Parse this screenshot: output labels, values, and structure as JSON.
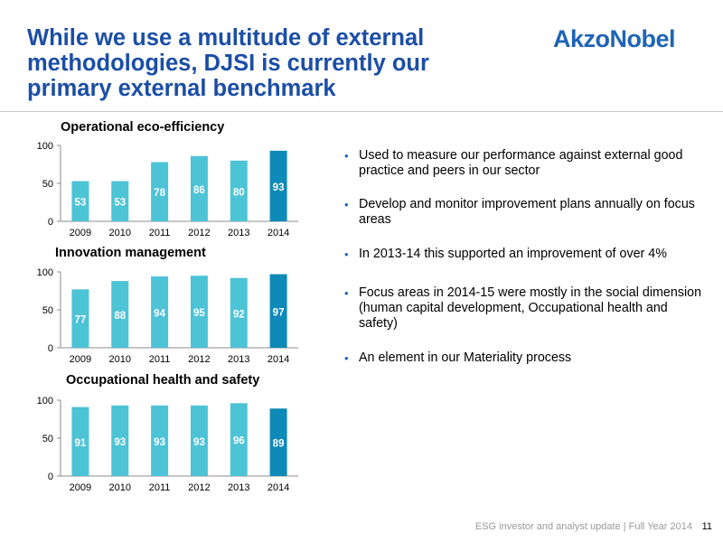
{
  "slide": {
    "title": "While we use a multitude of external methodologies, DJSI is currently our primary external benchmark",
    "logo_text": "AkzoNobel",
    "footer": "ESG investor and analyst update | Full Year 2014",
    "page_number": "11"
  },
  "bullets": [
    "Used to measure our performance against external good practice and peers in our sector",
    "Develop and monitor improvement plans annually on focus areas",
    "In 2013-14 this supported an improvement of over 4%",
    "Focus areas in 2014-15 were mostly in the social dimension (human capital development, Occupational health and safety)",
    "An element in our Materiality process"
  ],
  "colors": {
    "title": "#1b4ea6",
    "logo": "#1f64b6",
    "bar_light": "#4dc3d6",
    "bar_highlight": "#0e8ab8",
    "bullet": "#1f64b6"
  },
  "chart_data": [
    {
      "type": "bar",
      "title": "Operational eco-efficiency",
      "categories": [
        "2009",
        "2010",
        "2011",
        "2012",
        "2013",
        "2014"
      ],
      "values": [
        53,
        53,
        78,
        86,
        80,
        93
      ],
      "yticks": [
        "0",
        "50",
        "100"
      ],
      "ylim": [
        0,
        100
      ],
      "highlight_category": "2014",
      "grid": false
    },
    {
      "type": "bar",
      "title": "Innovation management",
      "categories": [
        "2009",
        "2010",
        "2011",
        "2012",
        "2013",
        "2014"
      ],
      "values": [
        77,
        88,
        94,
        95,
        92,
        97
      ],
      "yticks": [
        "0",
        "50",
        "100"
      ],
      "ylim": [
        0,
        100
      ],
      "highlight_category": "2014",
      "grid": false
    },
    {
      "type": "bar",
      "title": "Occupational health and safety",
      "categories": [
        "2009",
        "2010",
        "2011",
        "2012",
        "2013",
        "2014"
      ],
      "values": [
        91,
        93,
        93,
        93,
        96,
        89
      ],
      "yticks": [
        "0",
        "50",
        "100"
      ],
      "ylim": [
        0,
        100
      ],
      "highlight_category": "2014",
      "grid": false
    }
  ]
}
